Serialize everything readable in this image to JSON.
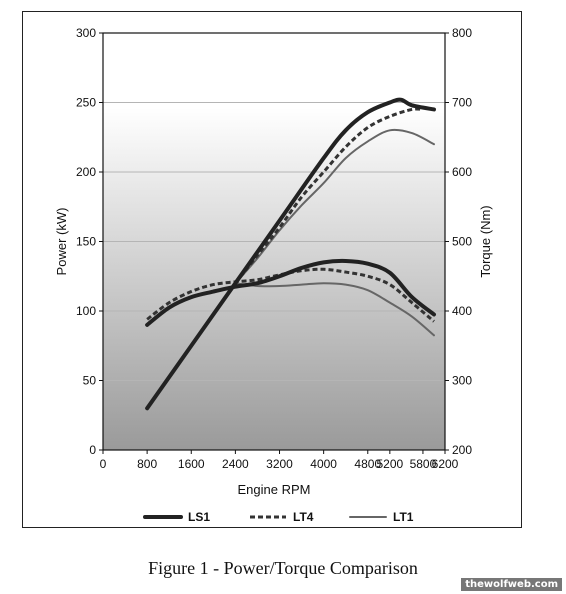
{
  "caption": "Figure 1 -  Power/Torque Comparison",
  "watermark": "thewolfweb.com",
  "chart_data": {
    "type": "line",
    "title": "",
    "xlabel": "Engine RPM",
    "ylabel": "Power (kW)",
    "y2label": "Torque (Nm)",
    "xlim": [
      0,
      6200
    ],
    "ylim": [
      0,
      300
    ],
    "y2lim": [
      200,
      800
    ],
    "xticks": [
      0,
      800,
      1600,
      2400,
      3200,
      4000,
      4800,
      5200,
      5800,
      6200
    ],
    "yticks": [
      0,
      50,
      100,
      150,
      200,
      250,
      300
    ],
    "y2ticks": [
      200,
      300,
      400,
      500,
      600,
      700,
      800
    ],
    "grid": "horizontal",
    "legend": "bottom",
    "series": [
      {
        "name": "LS1",
        "style": "solid-thick",
        "color": "#222222",
        "power": {
          "x": [
            800,
            1600,
            2400,
            3200,
            4000,
            4400,
            4800,
            5200,
            5400,
            5600,
            6000
          ],
          "y": [
            30,
            75,
            120,
            165,
            210,
            230,
            243,
            250,
            252,
            248,
            245
          ]
        },
        "torque": {
          "x": [
            800,
            1200,
            1600,
            2000,
            2400,
            2800,
            3200,
            3600,
            4000,
            4400,
            4800,
            5200,
            5600,
            6000
          ],
          "y": [
            380,
            405,
            420,
            428,
            435,
            440,
            450,
            462,
            470,
            472,
            468,
            455,
            420,
            395
          ]
        }
      },
      {
        "name": "LT4",
        "style": "dashed",
        "color": "#333333",
        "power": {
          "x": [
            2400,
            2800,
            3200,
            3600,
            4000,
            4400,
            4800,
            5200,
            5600,
            5800
          ],
          "y": [
            120,
            140,
            160,
            182,
            200,
            218,
            232,
            240,
            245,
            245
          ]
        },
        "torque": {
          "x": [
            800,
            1200,
            1600,
            2000,
            2400,
            2800,
            3200,
            3600,
            4000,
            4400,
            4800,
            5200,
            5600,
            6000
          ],
          "y": [
            388,
            412,
            428,
            438,
            442,
            445,
            452,
            458,
            460,
            456,
            450,
            438,
            412,
            385
          ]
        }
      },
      {
        "name": "LT1",
        "style": "solid-thin",
        "color": "#666666",
        "power": {
          "x": [
            2400,
            2800,
            3200,
            3600,
            4000,
            4400,
            4800,
            5200,
            5600,
            6000
          ],
          "y": [
            120,
            138,
            158,
            176,
            192,
            210,
            222,
            230,
            228,
            220
          ]
        },
        "torque": {
          "x": [
            2400,
            2800,
            3200,
            3600,
            4000,
            4400,
            4800,
            5200,
            5600,
            6000
          ],
          "y": [
            440,
            436,
            436,
            438,
            440,
            438,
            430,
            412,
            392,
            365
          ]
        }
      }
    ]
  }
}
